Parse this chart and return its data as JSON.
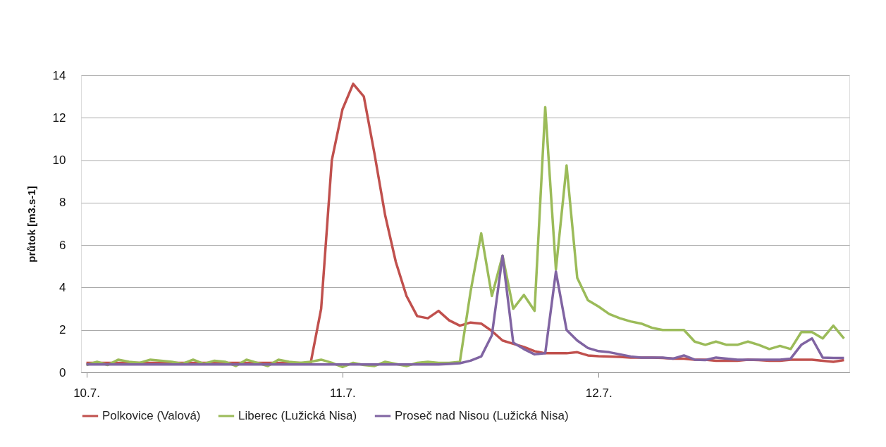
{
  "chart_data": {
    "type": "line",
    "ylabel": "průtok [m3.s-1]",
    "categories": [
      "10.7.",
      null,
      null,
      null,
      null,
      null,
      null,
      null,
      null,
      null,
      null,
      null,
      null,
      null,
      null,
      null,
      null,
      null,
      null,
      null,
      null,
      null,
      null,
      null,
      "11.7.",
      null,
      null,
      null,
      null,
      null,
      null,
      null,
      null,
      null,
      null,
      null,
      null,
      null,
      null,
      null,
      null,
      null,
      null,
      null,
      null,
      null,
      null,
      null,
      "12.7.",
      null,
      null,
      null,
      null,
      null,
      null,
      null,
      null,
      null,
      null,
      null,
      null,
      null,
      null,
      null,
      null,
      null,
      null,
      null,
      null,
      null,
      null,
      null
    ],
    "ylim": [
      0,
      14
    ],
    "yticks": [
      0,
      2,
      4,
      6,
      8,
      10,
      12,
      14
    ],
    "grid": "y",
    "legend": "bottom",
    "marker": "none",
    "line_style": "solid",
    "series": [
      {
        "name": "Polkovice (Valová)",
        "color": "#c0504d",
        "values": [
          0.45,
          0.45,
          0.45,
          0.45,
          0.45,
          0.45,
          0.45,
          0.45,
          0.45,
          0.45,
          0.45,
          0.45,
          0.45,
          0.45,
          0.45,
          0.45,
          0.45,
          0.45,
          0.45,
          0.45,
          0.45,
          0.4,
          3.0,
          10.0,
          12.4,
          13.6,
          13.0,
          10.3,
          7.4,
          5.2,
          3.6,
          2.65,
          2.55,
          2.9,
          2.45,
          2.2,
          2.35,
          2.3,
          1.95,
          1.5,
          1.35,
          1.2,
          1.0,
          0.9,
          0.9,
          0.9,
          0.95,
          0.8,
          0.76,
          0.75,
          0.73,
          0.7,
          0.7,
          0.7,
          0.68,
          0.65,
          0.65,
          0.6,
          0.6,
          0.55,
          0.55,
          0.55,
          0.6,
          0.58,
          0.55,
          0.55,
          0.6,
          0.6,
          0.6,
          0.55,
          0.5,
          0.58
        ]
      },
      {
        "name": "Liberec (Lužická Nisa)",
        "color": "#9bbb59",
        "values": [
          0.35,
          0.5,
          0.35,
          0.6,
          0.5,
          0.45,
          0.6,
          0.55,
          0.5,
          0.4,
          0.6,
          0.4,
          0.55,
          0.5,
          0.3,
          0.6,
          0.45,
          0.3,
          0.6,
          0.5,
          0.45,
          0.5,
          0.6,
          0.45,
          0.25,
          0.45,
          0.35,
          0.3,
          0.5,
          0.4,
          0.3,
          0.45,
          0.5,
          0.45,
          0.45,
          0.5,
          3.8,
          6.55,
          3.6,
          5.5,
          3.0,
          3.65,
          2.9,
          12.5,
          4.85,
          9.75,
          4.45,
          3.4,
          3.1,
          2.75,
          2.55,
          2.4,
          2.3,
          2.1,
          2.0,
          2.0,
          2.0,
          1.45,
          1.3,
          1.45,
          1.3,
          1.3,
          1.45,
          1.3,
          1.1,
          1.25,
          1.1,
          1.9,
          1.9,
          1.6,
          2.2,
          1.6
        ]
      },
      {
        "name": "Proseč nad Nisou (Lužická Nisa)",
        "color": "#8064a2",
        "values": [
          0.37,
          0.37,
          0.37,
          0.37,
          0.37,
          0.37,
          0.37,
          0.37,
          0.37,
          0.37,
          0.37,
          0.37,
          0.37,
          0.37,
          0.37,
          0.37,
          0.37,
          0.37,
          0.37,
          0.37,
          0.37,
          0.37,
          0.37,
          0.37,
          0.37,
          0.37,
          0.37,
          0.37,
          0.37,
          0.37,
          0.37,
          0.37,
          0.37,
          0.37,
          0.4,
          0.43,
          0.55,
          0.75,
          1.75,
          5.5,
          1.4,
          1.1,
          0.85,
          0.9,
          4.75,
          2.0,
          1.5,
          1.15,
          1.0,
          0.95,
          0.85,
          0.75,
          0.7,
          0.7,
          0.7,
          0.65,
          0.8,
          0.6,
          0.58,
          0.7,
          0.65,
          0.6,
          0.6,
          0.6,
          0.6,
          0.6,
          0.65,
          1.3,
          1.6,
          0.7,
          0.68,
          0.68
        ]
      }
    ]
  }
}
